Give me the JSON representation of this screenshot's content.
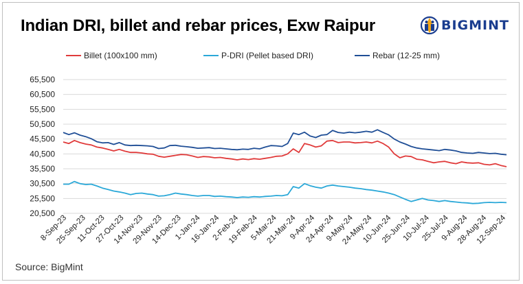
{
  "header": {
    "title": "Indian DRI, billet and rebar prices, Exw Raipur",
    "logo_text": "BIGMINT",
    "logo_icon": "bigmint-globe-icon"
  },
  "footer": {
    "source": "Source: BigMint"
  },
  "colors": {
    "billet": "#e03a3a",
    "pdri": "#2aa8d8",
    "rebar": "#1f4e96",
    "grid": "#d9d9d9"
  },
  "chart_data": {
    "type": "line",
    "title": "Indian DRI, billet and rebar prices, Exw Raipur",
    "xlabel": "",
    "ylabel": "",
    "ylim": [
      20500,
      65500
    ],
    "y_ticks": [
      "20,500",
      "25,500",
      "30,500",
      "35,500",
      "40,500",
      "45,500",
      "50,500",
      "55,500",
      "60,500",
      "65,500"
    ],
    "y_tick_values": [
      20500,
      25500,
      30500,
      35500,
      40500,
      45500,
      50500,
      55500,
      60500,
      65500
    ],
    "x_ticks": [
      "8-Sep-23",
      "25-Sep-23",
      "11-Oct-23",
      "27-Oct-23",
      "14-Nov-23",
      "29-Nov-23",
      "14-Dec-23",
      "1-Jan-24",
      "16-Jan-24",
      "2-Feb-24",
      "19-Feb-24",
      "5-Mar-24",
      "21-Mar-24",
      "9-Apr-24",
      "24-Apr-24",
      "9-May-24",
      "24-May-24",
      "10-Jun-24",
      "25-Jun-24",
      "10-Jul-24",
      "25-Jul-24",
      "9-Aug-24",
      "28-Aug-24",
      "12-Sep-24"
    ],
    "legend_position": "top",
    "grid": "horizontal",
    "series": [
      {
        "name": "Billet (100x100 mm)",
        "values": [
          44500,
          44000,
          45000,
          44300,
          43800,
          43500,
          42800,
          42500,
          42000,
          41500,
          42000,
          41400,
          41000,
          41000,
          40800,
          40500,
          40400,
          39700,
          39400,
          39700,
          40000,
          40300,
          40200,
          39800,
          39300,
          39600,
          39500,
          39200,
          39300,
          39000,
          38800,
          38500,
          38800,
          38600,
          38900,
          38700,
          39000,
          39300,
          39700,
          39800,
          40500,
          42200,
          41000,
          44000,
          43500,
          42800,
          43200,
          44800,
          45000,
          44300,
          44500,
          44500,
          44200,
          44300,
          44500,
          44200,
          44800,
          44000,
          42800,
          40500,
          39200,
          39800,
          39600,
          38700,
          38500,
          38000,
          37500,
          37800,
          38000,
          37500,
          37200,
          37800,
          37500,
          37400,
          37500,
          37000,
          36800,
          37200,
          36600,
          36200
        ]
      },
      {
        "name": "P-DRI (Pellet based DRI)",
        "values": [
          30300,
          30300,
          31200,
          30500,
          30200,
          30300,
          29700,
          29000,
          28500,
          28000,
          27700,
          27300,
          26800,
          27200,
          27300,
          27000,
          26800,
          26300,
          26400,
          26800,
          27300,
          27000,
          26800,
          26500,
          26300,
          26500,
          26500,
          26200,
          26300,
          26100,
          26000,
          25800,
          26000,
          25900,
          26100,
          26000,
          26200,
          26300,
          26500,
          26400,
          26800,
          29500,
          29000,
          30500,
          29800,
          29300,
          29000,
          29700,
          30000,
          29700,
          29500,
          29300,
          29000,
          28800,
          28500,
          28300,
          28000,
          27700,
          27300,
          26800,
          26000,
          25200,
          24500,
          25000,
          25500,
          25000,
          24800,
          24500,
          24800,
          24500,
          24300,
          24100,
          24000,
          23800,
          23900,
          24100,
          24200,
          24100,
          24200,
          24100
        ]
      },
      {
        "name": "Rebar (12-25 mm)",
        "values": [
          47700,
          47000,
          47600,
          46800,
          46300,
          45600,
          44600,
          44200,
          44300,
          43700,
          44300,
          43500,
          43300,
          43400,
          43300,
          43200,
          43000,
          42300,
          42500,
          43300,
          43400,
          43100,
          42900,
          42700,
          42400,
          42500,
          42600,
          42300,
          42400,
          42200,
          42000,
          41900,
          42100,
          42000,
          42400,
          42200,
          42800,
          43300,
          43200,
          43000,
          44000,
          47500,
          47000,
          47800,
          46500,
          46000,
          46800,
          47000,
          48400,
          47700,
          47500,
          47800,
          47600,
          47800,
          48100,
          47800,
          48600,
          47700,
          46900,
          45500,
          44500,
          43800,
          43000,
          42500,
          42200,
          42000,
          41800,
          41600,
          42000,
          41800,
          41500,
          41000,
          40800,
          40700,
          41000,
          40800,
          40600,
          40700,
          40400,
          40200
        ]
      }
    ]
  }
}
